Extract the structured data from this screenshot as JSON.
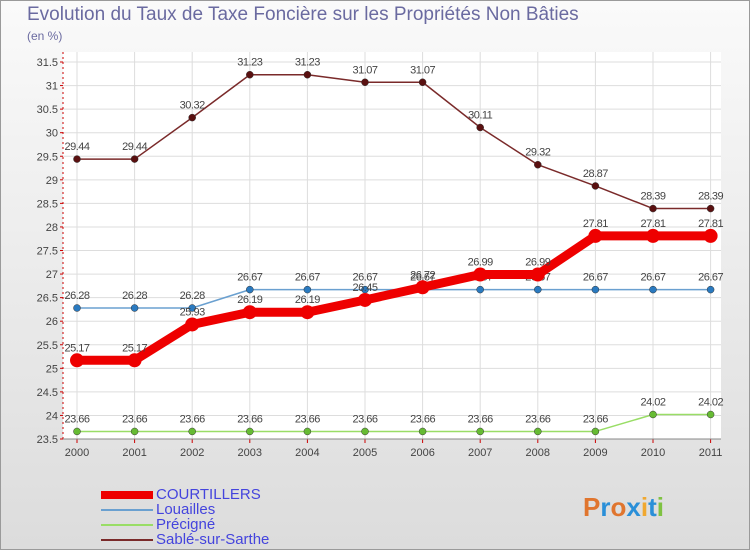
{
  "chart_data": {
    "type": "line",
    "title": "Evolution du Taux de Taxe Foncière sur les Propriétés Non Bâties",
    "unit_label": "(en %)",
    "xlabel": "",
    "ylabel": "",
    "ylim": [
      23.5,
      31.5
    ],
    "yticks": [
      "23.5",
      "24",
      "24.5",
      "25",
      "25.5",
      "26",
      "26.5",
      "27",
      "27.5",
      "28",
      "28.5",
      "29",
      "29.5",
      "30",
      "30.5",
      "31",
      "31.5"
    ],
    "categories": [
      "2000",
      "2001",
      "2002",
      "2003",
      "2004",
      "2005",
      "2006",
      "2007",
      "2008",
      "2009",
      "2010",
      "2011"
    ],
    "grid": true,
    "legend_position": "bottom-left",
    "series": [
      {
        "name": "Sablé-sur-Sarthe",
        "color": "#7a2a2a",
        "marker": "#5a1010",
        "weight": "thin",
        "values": [
          29.44,
          29.44,
          30.32,
          31.23,
          31.23,
          31.07,
          31.07,
          30.11,
          29.32,
          28.87,
          28.39,
          28.39
        ],
        "labels": [
          "29.44",
          "29.44",
          "30.32",
          "31.23",
          "31.23",
          "31.07",
          "31.07",
          "30.11",
          "29.32",
          "28.87",
          "28.39",
          "28.39"
        ]
      },
      {
        "name": "Louailles",
        "color": "#6aa0d0",
        "marker": "#2a7ac0",
        "weight": "thin",
        "values": [
          26.28,
          26.28,
          26.28,
          26.67,
          26.67,
          26.67,
          26.67,
          26.67,
          26.67,
          26.67,
          26.67,
          26.67
        ],
        "labels": [
          "26.28",
          "26.28",
          "26.28",
          "26.67",
          "26.67",
          "26.67",
          "26.67",
          "26.67",
          "26.67",
          "26.67",
          "26.67",
          "26.67"
        ]
      },
      {
        "name": "Précigné",
        "color": "#99dd66",
        "marker": "#66bb33",
        "weight": "thin",
        "values": [
          23.66,
          23.66,
          23.66,
          23.66,
          23.66,
          23.66,
          23.66,
          23.66,
          23.66,
          23.66,
          24.02,
          24.02
        ],
        "labels": [
          "23.66",
          "23.66",
          "23.66",
          "23.66",
          "23.66",
          "23.66",
          "23.66",
          "23.66",
          "23.66",
          "23.66",
          "24.02",
          "24.02"
        ]
      },
      {
        "name": "COURTILLERS",
        "color": "#ee0000",
        "marker": "#ee0000",
        "weight": "thick",
        "values": [
          25.17,
          25.17,
          25.93,
          26.19,
          26.19,
          26.45,
          26.72,
          26.99,
          26.99,
          27.81,
          27.81,
          27.81
        ],
        "labels": [
          "25.17",
          "25.17",
          "25.93",
          "26.19",
          "26.19",
          "26.45",
          "26.72",
          "26.99",
          "26.99",
          "27.81",
          "27.81",
          "27.81"
        ]
      }
    ],
    "legend": [
      "COURTILLERS",
      "Louailles",
      "Précigné",
      "Sablé-sur-Sarthe"
    ]
  },
  "legend_colors": [
    "#ee0000",
    "#6aa0d0",
    "#99dd66",
    "#7a2a2a"
  ],
  "logo": {
    "letters": [
      "P",
      "r",
      "o",
      "x",
      "i",
      "t",
      "i"
    ],
    "colors": [
      "#e0752e",
      "#2a8fd8",
      "#e0752e",
      "#2a8fd8",
      "#f0a830",
      "#2a8fd8",
      "#7fc242"
    ]
  }
}
